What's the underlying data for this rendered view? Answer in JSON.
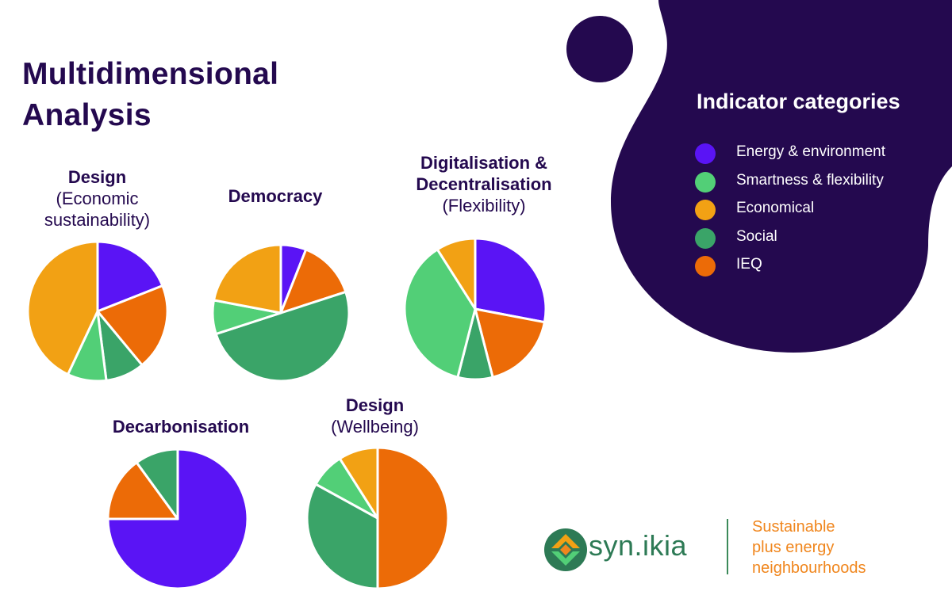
{
  "title_lines": [
    "Multidimensional",
    "Analysis"
  ],
  "legend": {
    "title": "Indicator categories",
    "items": [
      {
        "label": "Energy & environment",
        "color": "#5a14f5"
      },
      {
        "label": "Smartness & flexibility",
        "color": "#52cf77"
      },
      {
        "label": "Economical",
        "color": "#f2a114"
      },
      {
        "label": "Social",
        "color": "#3aa468"
      },
      {
        "label": "IEQ",
        "color": "#ec6b07"
      }
    ]
  },
  "colors": {
    "navy": "#24094f",
    "Energy & environment": "#5a14f5",
    "Smartness & flexibility": "#52cf77",
    "Economical": "#f2a114",
    "Social": "#3aa468",
    "IEQ": "#ec6b07"
  },
  "chart_data": [
    {
      "type": "pie",
      "title": "Design",
      "subtitle": "(Economic sustainability)",
      "categories": [
        "Energy & environment",
        "IEQ",
        "Social",
        "Smartness & flexibility",
        "Economical"
      ],
      "values": [
        19,
        20,
        9,
        9,
        43
      ]
    },
    {
      "type": "pie",
      "title": "Democracy",
      "subtitle": "",
      "categories": [
        "Energy & environment",
        "IEQ",
        "Social",
        "Smartness & flexibility",
        "Economical"
      ],
      "values": [
        6,
        14,
        50,
        8,
        22
      ]
    },
    {
      "type": "pie",
      "title": "Digitalisation & Decentralisation",
      "subtitle": "(Flexibility)",
      "categories": [
        "Energy & environment",
        "IEQ",
        "Social",
        "Smartness & flexibility",
        "Economical"
      ],
      "values": [
        28,
        18,
        8,
        37,
        9
      ]
    },
    {
      "type": "pie",
      "title": "Decarbonisation",
      "subtitle": "",
      "categories": [
        "Energy & environment",
        "IEQ",
        "Social"
      ],
      "values": [
        75,
        15,
        10
      ]
    },
    {
      "type": "pie",
      "title": "Design",
      "subtitle": "(Wellbeing)",
      "categories": [
        "IEQ",
        "Social",
        "Smartness & flexibility",
        "Economical"
      ],
      "values": [
        50,
        33,
        8,
        9
      ]
    }
  ],
  "brand": {
    "name": "syn.ikia",
    "tagline_lines": [
      "Sustainable",
      "plus energy",
      "neighbourhoods"
    ]
  }
}
